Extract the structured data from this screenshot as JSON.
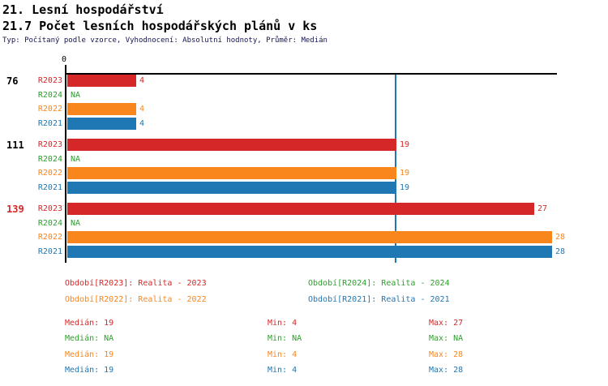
{
  "header": {
    "title": "21. Lesní hospodářství",
    "subtitle": "21.7 Počet lesních hospodářských plánů v ks",
    "meta": "Typ: Počítaný podle vzorce, Vyhodnocení: Absolutní hodnoty, Průměr: Medián"
  },
  "colors": {
    "r2023": "#d62728",
    "r2024": "#2ca02c",
    "r2022": "#f8861d",
    "r2021": "#1f77b4",
    "axis": "#000000",
    "median_line": "#1f77b4",
    "meta_text": "#141452",
    "group_label_default": "#000000",
    "group_label_highlight": "#d62728"
  },
  "chart_data": {
    "type": "bar",
    "orientation": "horizontal",
    "title": "21.7 Počet lesních hospodářských plánů v ks",
    "xlabel": "",
    "ylabel": "",
    "xlim": [
      0,
      28.4
    ],
    "x_ticks": [
      "0"
    ],
    "grid": false,
    "median_reference_line": 19,
    "series_order": [
      "R2023",
      "R2024",
      "R2022",
      "R2021"
    ],
    "groups": [
      {
        "label": "76",
        "label_color": "#000000",
        "bars": [
          {
            "series": "R2023",
            "value": 4,
            "display": "4",
            "color": "#d62728"
          },
          {
            "series": "R2024",
            "value": null,
            "display": "NA",
            "color": "#2ca02c"
          },
          {
            "series": "R2022",
            "value": 4,
            "display": "4",
            "color": "#f8861d"
          },
          {
            "series": "R2021",
            "value": 4,
            "display": "4",
            "color": "#1f77b4"
          }
        ]
      },
      {
        "label": "111",
        "label_color": "#000000",
        "bars": [
          {
            "series": "R2023",
            "value": 19,
            "display": "19",
            "color": "#d62728"
          },
          {
            "series": "R2024",
            "value": null,
            "display": "NA",
            "color": "#2ca02c"
          },
          {
            "series": "R2022",
            "value": 19,
            "display": "19",
            "color": "#f8861d"
          },
          {
            "series": "R2021",
            "value": 19,
            "display": "19",
            "color": "#1f77b4"
          }
        ]
      },
      {
        "label": "139",
        "label_color": "#d62728",
        "bars": [
          {
            "series": "R2023",
            "value": 27,
            "display": "27",
            "color": "#d62728"
          },
          {
            "series": "R2024",
            "value": null,
            "display": "NA",
            "color": "#2ca02c"
          },
          {
            "series": "R2022",
            "value": 28,
            "display": "28",
            "color": "#f8861d"
          },
          {
            "series": "R2021",
            "value": 28,
            "display": "28",
            "color": "#1f77b4"
          }
        ]
      }
    ]
  },
  "legend": [
    {
      "label": "Období[R2023]: Realita - 2023",
      "color": "#d62728"
    },
    {
      "label": "Období[R2024]: Realita - 2024",
      "color": "#2ca02c"
    },
    {
      "label": "Období[R2022]: Realita - 2022",
      "color": "#f8861d"
    },
    {
      "label": "Období[R2021]: Realita - 2021",
      "color": "#1f77b4"
    }
  ],
  "stats": [
    {
      "median": "Medián: 19",
      "min": "Min: 4",
      "max": "Max: 27",
      "color": "#d62728"
    },
    {
      "median": "Medián: NA",
      "min": "Min: NA",
      "max": "Max: NA",
      "color": "#2ca02c"
    },
    {
      "median": "Medián: 19",
      "min": "Min: 4",
      "max": "Max: 28",
      "color": "#f8861d"
    },
    {
      "median": "Medián: 19",
      "min": "Min: 4",
      "max": "Max: 28",
      "color": "#1f77b4"
    }
  ]
}
